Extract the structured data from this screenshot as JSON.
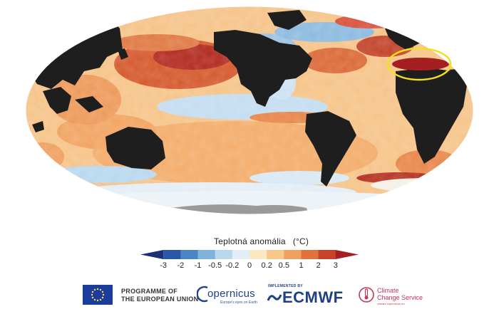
{
  "map": {
    "colors": {
      "land": "#1e1e1e",
      "sea_ice": "#eef3f7",
      "antarctica": "#9a9a9a",
      "highlight_ellipse": "#f2e01c"
    }
  },
  "legend": {
    "title": "Teplotná anomália",
    "unit": "(°C)",
    "ticks": [
      "-3",
      "-2",
      "-1",
      "-0.5",
      "-0.2",
      "0",
      "0.2",
      "0.5",
      "1",
      "2",
      "3"
    ],
    "colors": [
      "#1c2f78",
      "#2a58a8",
      "#4a86c6",
      "#7eb3dc",
      "#b9d8ee",
      "#e2eef7",
      "#fbe8c2",
      "#f7c88c",
      "#f0a060",
      "#e0723a",
      "#c8412a",
      "#a51f22"
    ]
  },
  "footer": {
    "eu_line1": "PROGRAMME OF",
    "eu_line2": "THE EUROPEAN UNION",
    "copernicus": "opernicus",
    "copernicus_tagline": "Europe's eyes on Earth",
    "implemented_by": "IMPLEMENTED BY",
    "ecmwf": "ECMWF",
    "climate_line1": "Climate",
    "climate_line2": "Change Service",
    "climate_url": "climate.copernicus.eu"
  }
}
